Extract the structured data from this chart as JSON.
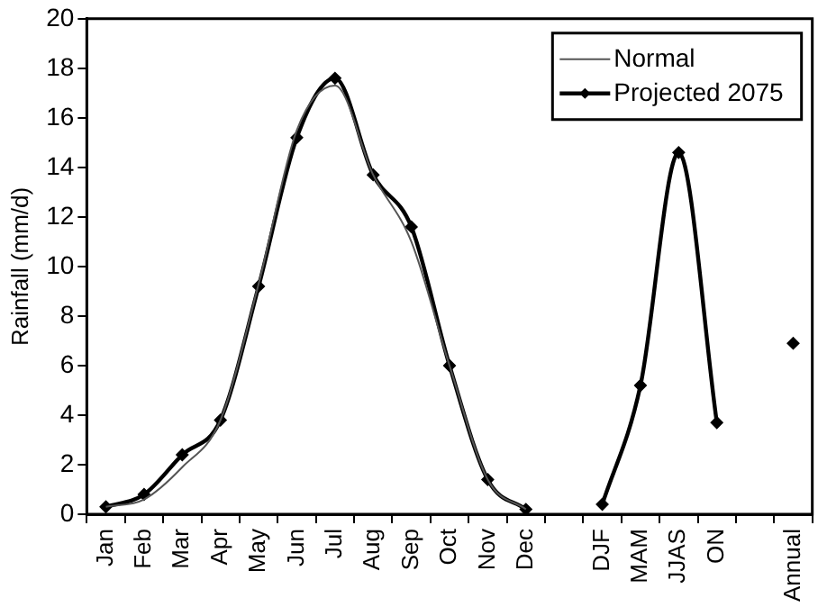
{
  "chart_data": {
    "type": "line",
    "ylabel": "Rainfall (mm/d)",
    "categories": [
      "Jan",
      "Feb",
      "Mar",
      "Apr",
      "May",
      "Jun",
      "Jul",
      "Aug",
      "Sep",
      "Oct",
      "Nov",
      "Dec",
      null,
      "DJF",
      "MAM",
      "JJAS",
      "ON",
      null,
      "Annual"
    ],
    "series": [
      {
        "name": "Normal",
        "color": "#555555",
        "marker": "none",
        "values": [
          0.3,
          0.6,
          1.9,
          3.8,
          9.3,
          15.5,
          17.3,
          13.7,
          11.0,
          6.0,
          1.4,
          0.2,
          null,
          null,
          null,
          null,
          null,
          null,
          null
        ]
      },
      {
        "name": "Projected 2075",
        "color": "#000000",
        "marker": "diamond",
        "values": [
          0.3,
          0.8,
          2.4,
          3.8,
          9.2,
          15.2,
          17.6,
          13.7,
          11.6,
          6.0,
          1.4,
          0.2,
          null,
          0.4,
          5.2,
          14.6,
          3.7,
          null,
          6.9
        ]
      }
    ],
    "ylim": [
      0,
      20
    ],
    "yticks": [
      0,
      2,
      4,
      6,
      8,
      10,
      12,
      14,
      16,
      18,
      20
    ],
    "grid": false,
    "legend": "top right"
  }
}
